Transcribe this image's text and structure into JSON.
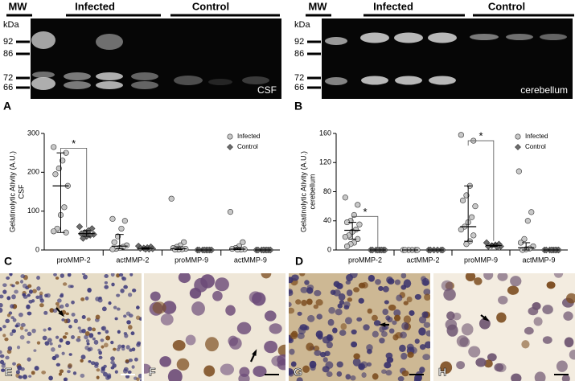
{
  "gels": [
    {
      "panel": "A",
      "sample": "CSF",
      "lanes": [
        "MW",
        "Infected",
        "Control"
      ],
      "unit": "kDa",
      "markers": [
        "92",
        "86",
        "72",
        "66"
      ]
    },
    {
      "panel": "B",
      "sample": "cerebellum",
      "lanes": [
        "MW",
        "Infected",
        "Control"
      ],
      "unit": "kDa",
      "markers": [
        "92",
        "86",
        "72",
        "66"
      ]
    }
  ],
  "chart_data": [
    {
      "type": "dot",
      "panel": "C",
      "y_label": [
        "Gelatinolytic Ativity (A.U.)",
        "CSF"
      ],
      "categories": [
        "proMMP-2",
        "actMMP-2",
        "proMMP-9",
        "actMMP-9"
      ],
      "ylim": [
        0,
        300
      ],
      "yticks": [
        0,
        100,
        200,
        300
      ],
      "legend": "top-right",
      "annotations": [
        "*"
      ],
      "series": [
        {
          "name": "Infected",
          "color": "#c8c8c8",
          "marker": "circle",
          "values": [
            [
              265,
              250,
              230,
              210,
              195,
              165,
              110,
              90,
              55,
              48,
              45
            ],
            [
              80,
              75,
              55,
              35,
              20,
              12,
              8,
              5,
              3,
              2
            ],
            [
              132,
              20,
              12,
              8,
              5,
              3,
              2,
              1,
              1
            ],
            [
              98,
              20,
              10,
              5,
              3,
              2,
              1,
              1
            ]
          ],
          "medians": [
            165,
            10,
            3,
            2
          ],
          "iqr": [
            [
              45,
              250
            ],
            [
              3,
              40
            ],
            [
              1,
              8
            ],
            [
              1,
              5
            ]
          ]
        },
        {
          "name": "Control",
          "color": "#6e6e6e",
          "marker": "diamond",
          "values": [
            [
              60,
              55,
              50,
              45,
              42,
              40,
              38,
              35,
              30
            ],
            [
              10,
              8,
              6,
              5,
              4,
              3,
              2,
              2
            ],
            [
              0,
              0,
              0,
              0,
              0,
              0,
              0,
              0
            ],
            [
              0,
              0,
              0,
              0,
              0,
              0,
              0,
              0
            ]
          ],
          "medians": [
            42,
            4,
            0,
            0
          ],
          "iqr": [
            [
              35,
              50
            ],
            [
              2,
              6
            ],
            [
              0,
              0
            ],
            [
              0,
              0
            ]
          ]
        }
      ]
    },
    {
      "type": "dot",
      "panel": "D",
      "y_label": [
        "Gelatinolytic Ativity (A.U.)",
        "cerebellum"
      ],
      "categories": [
        "proMMP-2",
        "actMMP-2",
        "proMMP-9",
        "actMMP-9"
      ],
      "ylim": [
        0,
        160
      ],
      "yticks": [
        0,
        40,
        80,
        120,
        160
      ],
      "legend": "top-right",
      "annotations": [
        "*",
        "*"
      ],
      "series": [
        {
          "name": "Infected",
          "color": "#c8c8c8",
          "marker": "circle",
          "values": [
            [
              72,
              62,
              48,
              40,
              38,
              35,
              28,
              25,
              20,
              18,
              15,
              10,
              8,
              5
            ],
            [
              0,
              0,
              0,
              0,
              0,
              0
            ],
            [
              158,
              150,
              88,
              75,
              68,
              60,
              45,
              38,
              32,
              28,
              20,
              12,
              8
            ],
            [
              108,
              52,
              40,
              15,
              10,
              5,
              2,
              1,
              0
            ]
          ],
          "medians": [
            27,
            0,
            32,
            3
          ],
          "iqr": [
            [
              15,
              38
            ],
            [
              0,
              0
            ],
            [
              12,
              88
            ],
            [
              0,
              10
            ]
          ]
        },
        {
          "name": "Control",
          "color": "#6e6e6e",
          "marker": "diamond",
          "values": [
            [
              0,
              0,
              0,
              0,
              0,
              0,
              0,
              0
            ],
            [
              0,
              0,
              0,
              0,
              0,
              0
            ],
            [
              10,
              8,
              7,
              6,
              5,
              5,
              4
            ],
            [
              0,
              0,
              0,
              0,
              0,
              0,
              0,
              0
            ]
          ],
          "medians": [
            0,
            0,
            6,
            0
          ],
          "iqr": [
            [
              0,
              0
            ],
            [
              0,
              0
            ],
            [
              5,
              8
            ],
            [
              0,
              0
            ]
          ]
        }
      ]
    }
  ],
  "micrographs": [
    {
      "panel": "E"
    },
    {
      "panel": "F"
    },
    {
      "panel": "G"
    },
    {
      "panel": "H"
    }
  ]
}
